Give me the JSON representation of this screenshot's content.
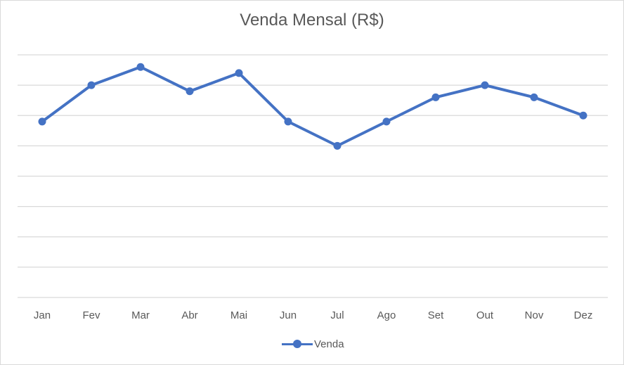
{
  "chart_data": {
    "type": "line",
    "title": "Venda Mensal (R$)",
    "categories": [
      "Jan",
      "Fev",
      "Mar",
      "Abr",
      "Mai",
      "Jun",
      "Jul",
      "Ago",
      "Set",
      "Out",
      "Nov",
      "Dez"
    ],
    "series": [
      {
        "name": "Venda",
        "values": [
          5.8,
          7.0,
          7.6,
          6.8,
          7.4,
          5.8,
          5.0,
          5.8,
          6.6,
          7.0,
          6.6,
          6.0
        ]
      }
    ],
    "ylim": [
      0,
      8
    ],
    "y_gridlines": 8,
    "grid": true,
    "y_tick_labels": false,
    "legend": "bottom",
    "colors": {
      "series": "#4472C4",
      "grid": "#d9d9d9",
      "text": "#595959"
    }
  }
}
